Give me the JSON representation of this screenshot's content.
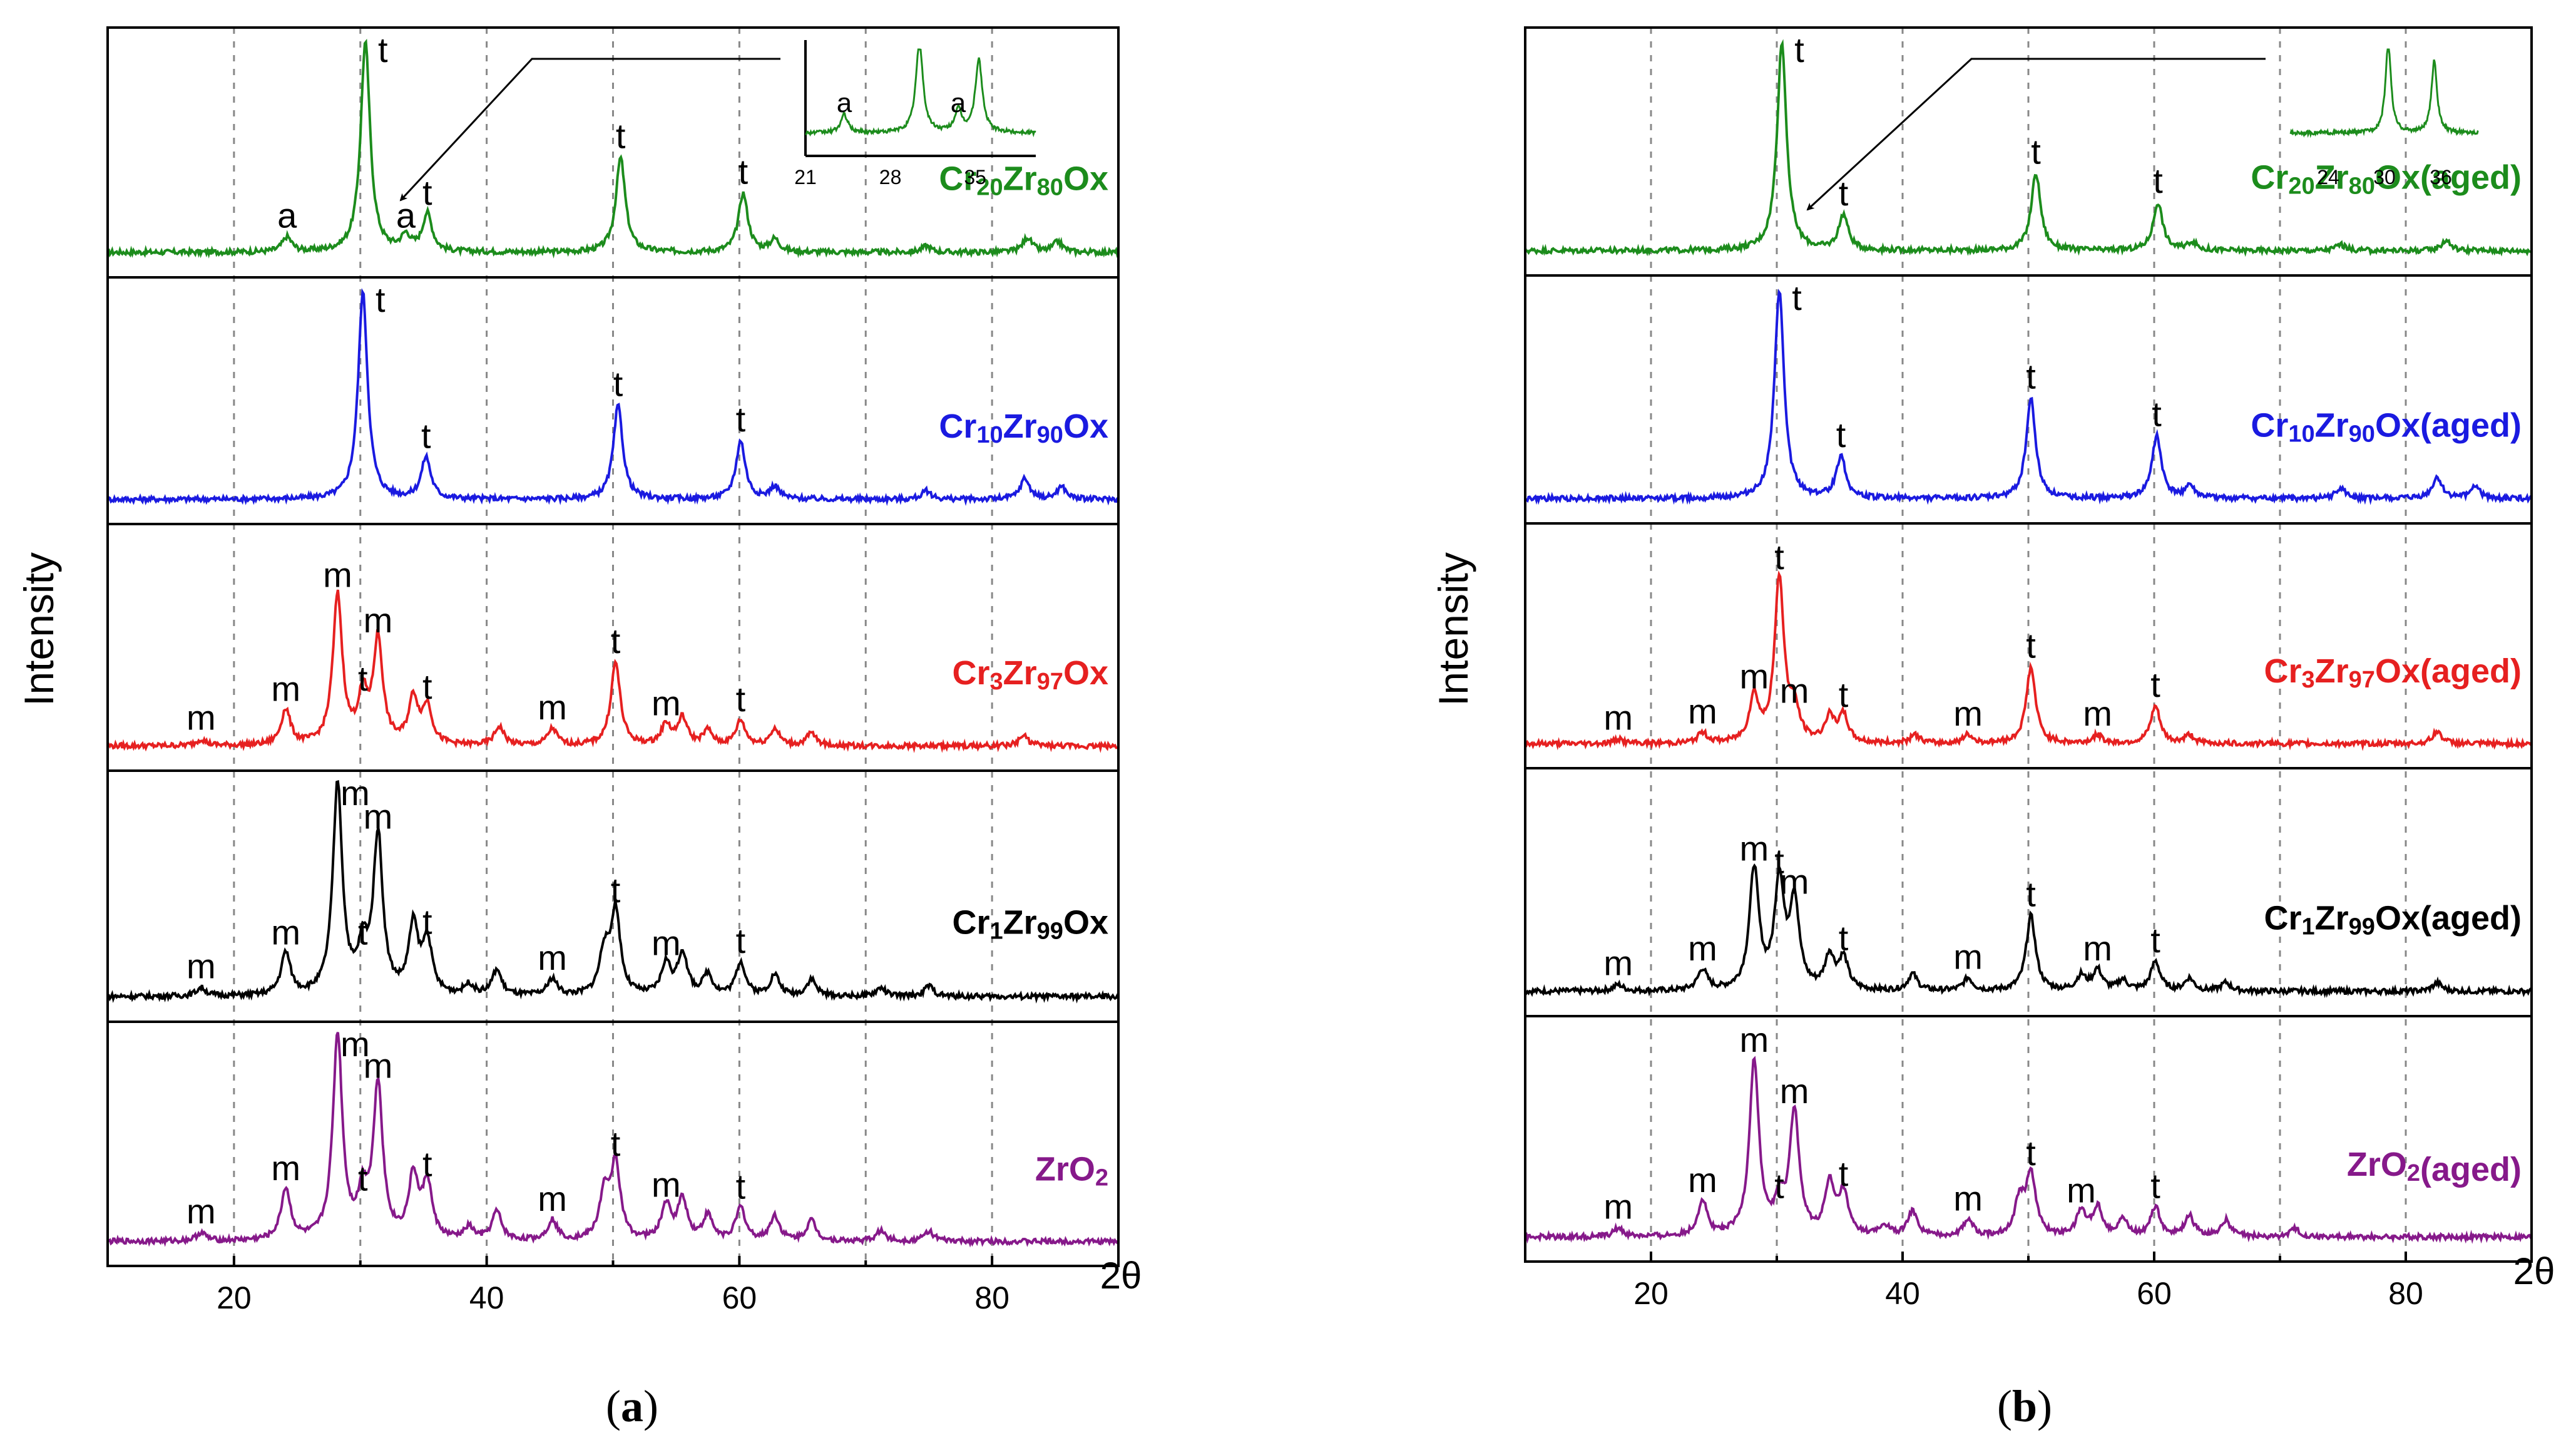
{
  "chart_data": [
    {
      "panel": "a",
      "type": "line",
      "caption": "(a)",
      "ylabel": "Intensity",
      "xlabel": "2θ",
      "xlim": [
        10,
        90
      ],
      "xticks": [
        20,
        40,
        60,
        80
      ],
      "grid": "vertical dashed at 20, 30, 40, 50, 60, 70, 80",
      "series": [
        {
          "name": "Cr20Zr80Ox",
          "label_main": "Cr",
          "label_sub1": "20",
          "label_mid": "Zr",
          "label_sub2": "80",
          "label_end": "Ox",
          "color": "#1c8c1c",
          "peaks": [
            [
              24.2,
              0.07,
              "a"
            ],
            [
              30.4,
              1.0,
              "t"
            ],
            [
              33.6,
              0.07,
              "a"
            ],
            [
              35.3,
              0.18,
              "t"
            ],
            [
              50.6,
              0.45,
              "t"
            ],
            [
              60.3,
              0.28,
              "t"
            ],
            [
              62.8,
              0.06,
              ""
            ],
            [
              74.8,
              0.03,
              ""
            ],
            [
              82.8,
              0.07,
              ""
            ],
            [
              85.2,
              0.05,
              ""
            ]
          ]
        },
        {
          "name": "Cr10Zr90Ox",
          "label_main": "Cr",
          "label_sub1": "10",
          "label_mid": "Zr",
          "label_sub2": "90",
          "label_end": "Ox",
          "color": "#1a1ae0",
          "peaks": [
            [
              30.2,
              1.0,
              "t"
            ],
            [
              35.2,
              0.2,
              "t"
            ],
            [
              50.4,
              0.45,
              "t"
            ],
            [
              60.1,
              0.28,
              "t"
            ],
            [
              62.8,
              0.06,
              ""
            ],
            [
              74.8,
              0.04,
              ""
            ],
            [
              82.6,
              0.1,
              ""
            ],
            [
              85.5,
              0.06,
              ""
            ]
          ]
        },
        {
          "name": "Cr3Zr97Ox",
          "label_main": "Cr",
          "label_sub1": "3",
          "label_mid": "Zr",
          "label_sub2": "97",
          "label_end": "Ox",
          "color": "#e62020",
          "peaks": [
            [
              17.4,
              0.03,
              "m"
            ],
            [
              24.1,
              0.17,
              "m"
            ],
            [
              28.2,
              0.72,
              "m"
            ],
            [
              30.2,
              0.22,
              "t"
            ],
            [
              31.4,
              0.5,
              "m"
            ],
            [
              34.2,
              0.22,
              ""
            ],
            [
              35.3,
              0.18,
              "t"
            ],
            [
              41.0,
              0.09,
              ""
            ],
            [
              45.2,
              0.08,
              "m"
            ],
            [
              50.2,
              0.4,
              "t"
            ],
            [
              54.2,
              0.1,
              "m"
            ],
            [
              55.5,
              0.13,
              ""
            ],
            [
              57.5,
              0.07,
              ""
            ],
            [
              60.1,
              0.12,
              "t"
            ],
            [
              62.8,
              0.08,
              ""
            ],
            [
              65.7,
              0.06,
              ""
            ],
            [
              82.5,
              0.05,
              ""
            ]
          ]
        },
        {
          "name": "Cr1Zr99Ox",
          "label_main": "Cr",
          "label_sub1": "1",
          "label_mid": "Zr",
          "label_sub2": "99",
          "label_end": "Ox",
          "color": "#000000",
          "peaks": [
            [
              17.4,
              0.04,
              "m"
            ],
            [
              24.1,
              0.2,
              "m"
            ],
            [
              28.2,
              1.0,
              "m"
            ],
            [
              30.2,
              0.2,
              "t"
            ],
            [
              31.4,
              0.75,
              "m"
            ],
            [
              34.2,
              0.32,
              ""
            ],
            [
              35.3,
              0.25,
              "t"
            ],
            [
              38.6,
              0.05,
              ""
            ],
            [
              40.8,
              0.12,
              ""
            ],
            [
              45.2,
              0.08,
              "m"
            ],
            [
              49.3,
              0.2,
              ""
            ],
            [
              50.2,
              0.4,
              "t"
            ],
            [
              54.2,
              0.15,
              "m"
            ],
            [
              55.5,
              0.2,
              ""
            ],
            [
              57.5,
              0.1,
              ""
            ],
            [
              60.1,
              0.16,
              "t"
            ],
            [
              62.8,
              0.1,
              ""
            ],
            [
              65.7,
              0.08,
              ""
            ],
            [
              71.2,
              0.04,
              ""
            ],
            [
              75.0,
              0.05,
              ""
            ]
          ]
        },
        {
          "name": "ZrO2",
          "label_main": "ZrO",
          "label_sub1": "2",
          "label_mid": "",
          "label_sub2": "",
          "label_end": "",
          "color": "#86198a",
          "peaks": [
            [
              17.4,
              0.04,
              "m"
            ],
            [
              24.1,
              0.25,
              "m"
            ],
            [
              28.2,
              1.0,
              "m"
            ],
            [
              30.2,
              0.2,
              "t"
            ],
            [
              31.4,
              0.75,
              "m"
            ],
            [
              34.2,
              0.3,
              ""
            ],
            [
              35.3,
              0.27,
              "t"
            ],
            [
              38.6,
              0.06,
              ""
            ],
            [
              40.8,
              0.14,
              ""
            ],
            [
              45.2,
              0.1,
              "m"
            ],
            [
              49.3,
              0.22,
              ""
            ],
            [
              50.2,
              0.37,
              "t"
            ],
            [
              54.2,
              0.17,
              "m"
            ],
            [
              55.5,
              0.2,
              ""
            ],
            [
              57.5,
              0.12,
              ""
            ],
            [
              60.1,
              0.16,
              "t"
            ],
            [
              62.8,
              0.12,
              ""
            ],
            [
              65.7,
              0.1,
              ""
            ],
            [
              71.2,
              0.05,
              ""
            ],
            [
              75.0,
              0.05,
              ""
            ]
          ]
        }
      ],
      "inset": {
        "series": "Cr20Zr80Ox",
        "xticks": [
          21,
          28,
          35
        ],
        "peak_labels": [
          "a",
          "a"
        ],
        "peaks": [
          [
            24.2,
            0.2
          ],
          [
            30.4,
            1.0
          ],
          [
            33.6,
            0.24
          ],
          [
            35.3,
            0.8
          ]
        ]
      }
    },
    {
      "panel": "b",
      "type": "line",
      "caption": "(b)",
      "ylabel": "Intensity",
      "xlabel": "2θ",
      "xlim": [
        10,
        90
      ],
      "xticks": [
        20,
        40,
        60,
        80
      ],
      "grid": "vertical dashed at 20, 30, 40, 50, 60, 70, 80",
      "series": [
        {
          "name": "Cr20Zr80Ox(aged)",
          "label_main": "Cr",
          "label_sub1": "20",
          "label_mid": "Zr",
          "label_sub2": "80",
          "label_end": "Ox(aged)",
          "color": "#1c8c1c",
          "peaks": [
            [
              30.4,
              1.0,
              "t"
            ],
            [
              35.3,
              0.17,
              "t"
            ],
            [
              50.6,
              0.37,
              "t"
            ],
            [
              60.3,
              0.23,
              "t"
            ],
            [
              63.0,
              0.04,
              ""
            ],
            [
              74.8,
              0.03,
              ""
            ],
            [
              83.2,
              0.05,
              ""
            ]
          ]
        },
        {
          "name": "Cr10Zr90Ox(aged)",
          "label_main": "Cr",
          "label_sub1": "10",
          "label_mid": "Zr",
          "label_sub2": "90",
          "label_end": "Ox(aged)",
          "color": "#1a1ae0",
          "peaks": [
            [
              30.2,
              1.0,
              "t"
            ],
            [
              35.1,
              0.2,
              "t"
            ],
            [
              50.2,
              0.48,
              "t"
            ],
            [
              60.2,
              0.3,
              "t"
            ],
            [
              62.8,
              0.06,
              ""
            ],
            [
              74.8,
              0.05,
              ""
            ],
            [
              82.5,
              0.1,
              ""
            ],
            [
              85.5,
              0.06,
              ""
            ]
          ]
        },
        {
          "name": "Cr3Zr97Ox(aged)",
          "label_main": "Cr",
          "label_sub1": "3",
          "label_mid": "Zr",
          "label_sub2": "97",
          "label_end": "Ox(aged)",
          "color": "#e62020",
          "peaks": [
            [
              17.4,
              0.02,
              "m"
            ],
            [
              24.1,
              0.05,
              "m"
            ],
            [
              28.2,
              0.22,
              "m"
            ],
            [
              30.2,
              0.8,
              "t"
            ],
            [
              31.4,
              0.15,
              "m"
            ],
            [
              34.2,
              0.12,
              ""
            ],
            [
              35.3,
              0.13,
              "t"
            ],
            [
              41.0,
              0.04,
              ""
            ],
            [
              45.2,
              0.04,
              "m"
            ],
            [
              50.2,
              0.37,
              "t"
            ],
            [
              55.5,
              0.04,
              "m"
            ],
            [
              60.1,
              0.18,
              "t"
            ],
            [
              62.8,
              0.04,
              ""
            ],
            [
              82.5,
              0.06,
              ""
            ]
          ]
        },
        {
          "name": "Cr1Zr99Ox(aged)",
          "label_main": "Cr",
          "label_sub1": "1",
          "label_mid": "Zr",
          "label_sub2": "99",
          "label_end": "Ox(aged)",
          "color": "#000000",
          "peaks": [
            [
              17.4,
              0.03,
              "m"
            ],
            [
              24.1,
              0.1,
              "m"
            ],
            [
              28.2,
              0.58,
              "m"
            ],
            [
              30.2,
              0.52,
              "t"
            ],
            [
              31.4,
              0.42,
              "m"
            ],
            [
              34.2,
              0.16,
              ""
            ],
            [
              35.3,
              0.15,
              "t"
            ],
            [
              40.8,
              0.08,
              ""
            ],
            [
              45.2,
              0.06,
              "m"
            ],
            [
              50.2,
              0.36,
              "t"
            ],
            [
              54.2,
              0.07,
              ""
            ],
            [
              55.5,
              0.1,
              "m"
            ],
            [
              57.5,
              0.05,
              ""
            ],
            [
              60.1,
              0.14,
              "t"
            ],
            [
              62.8,
              0.06,
              ""
            ],
            [
              65.7,
              0.04,
              ""
            ],
            [
              82.5,
              0.04,
              ""
            ]
          ]
        },
        {
          "name": "ZrO2(aged)",
          "label_main": "ZrO",
          "label_sub1": "2",
          "label_mid": "",
          "label_sub2": "",
          "label_end": "(aged)",
          "color": "#86198a",
          "peaks": [
            [
              17.4,
              0.04,
              "m"
            ],
            [
              24.1,
              0.17,
              "m"
            ],
            [
              28.2,
              0.85,
              "m"
            ],
            [
              30.2,
              0.14,
              "t"
            ],
            [
              31.4,
              0.6,
              "m"
            ],
            [
              34.2,
              0.24,
              ""
            ],
            [
              35.3,
              0.2,
              "t"
            ],
            [
              38.6,
              0.05,
              ""
            ],
            [
              40.8,
              0.12,
              ""
            ],
            [
              45.2,
              0.08,
              "m"
            ],
            [
              49.3,
              0.17,
              ""
            ],
            [
              50.2,
              0.3,
              "t"
            ],
            [
              54.2,
              0.12,
              "m"
            ],
            [
              55.5,
              0.14,
              ""
            ],
            [
              57.5,
              0.08,
              ""
            ],
            [
              60.1,
              0.14,
              "t"
            ],
            [
              62.8,
              0.1,
              ""
            ],
            [
              65.7,
              0.08,
              ""
            ],
            [
              71.2,
              0.04,
              ""
            ]
          ]
        }
      ],
      "inset": {
        "series": "Cr20Zr80Ox(aged)",
        "xticks": [
          24,
          30,
          36
        ],
        "peak_labels": [],
        "peaks": [
          [
            30.4,
            1.0
          ],
          [
            35.3,
            0.8
          ]
        ]
      }
    }
  ]
}
